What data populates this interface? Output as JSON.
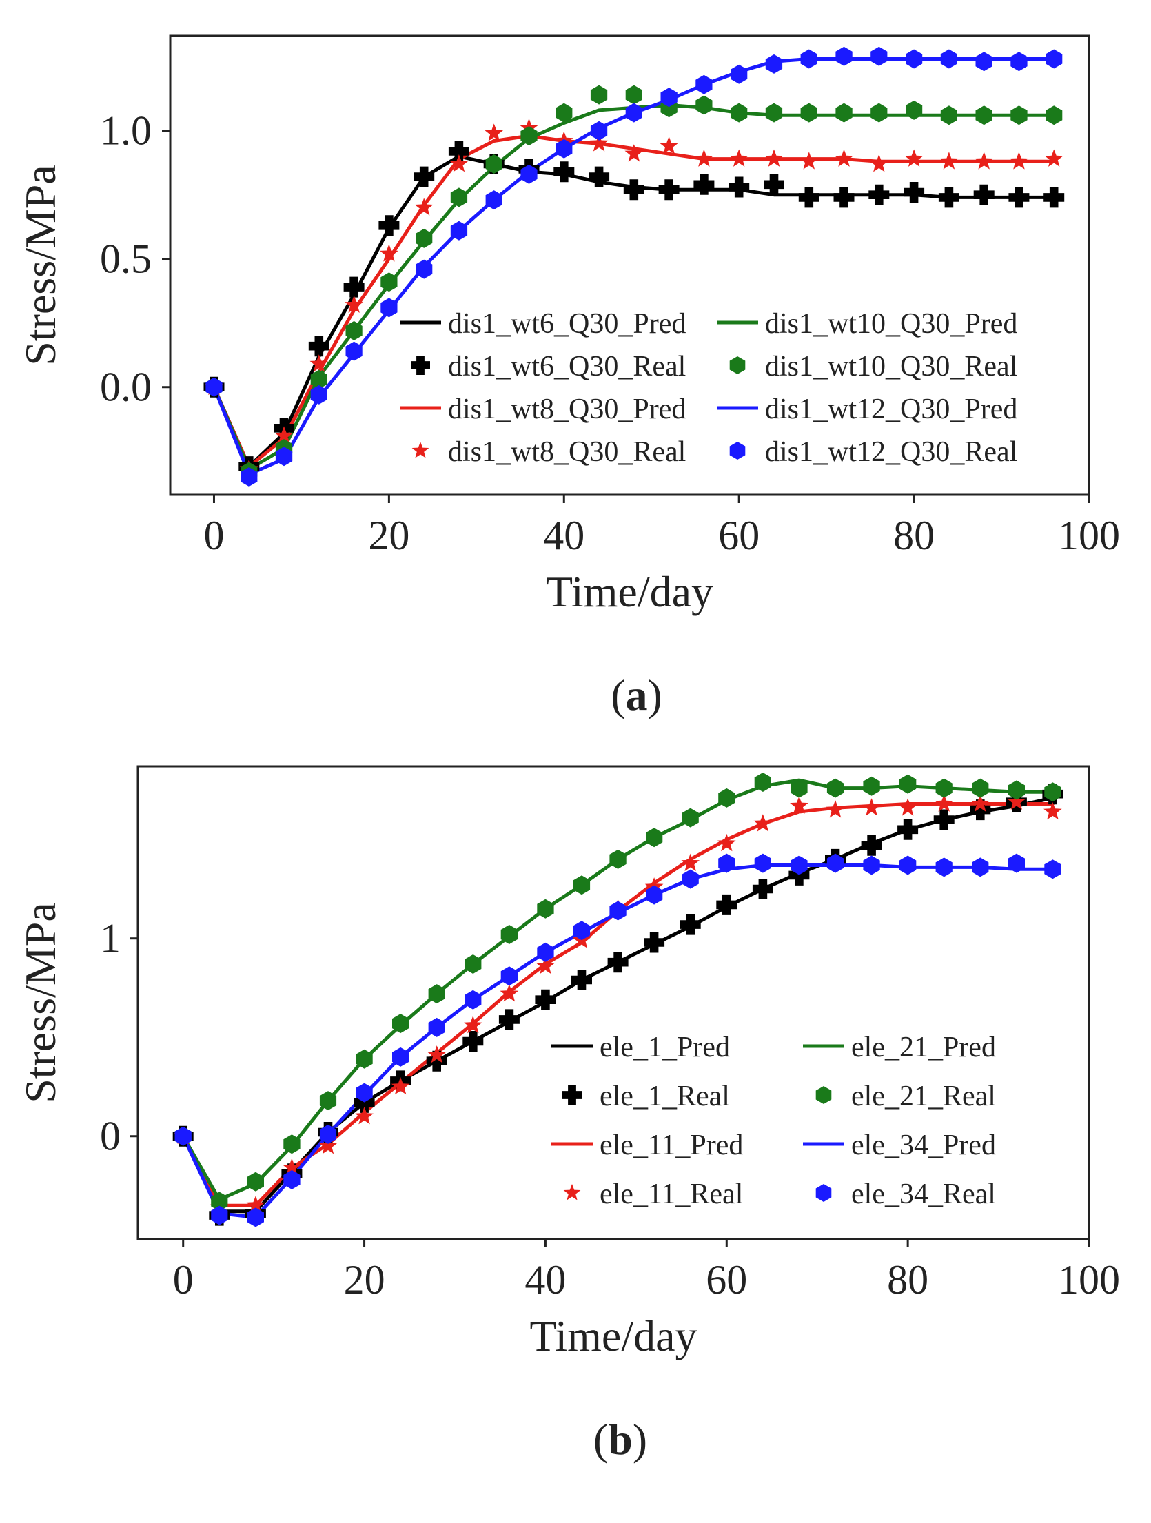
{
  "chart_data": [
    {
      "type": "line",
      "panel_label": "(a)",
      "panel_label_letter": "a",
      "xlabel": "Time/day",
      "ylabel": "Stress/MPa",
      "xlim": [
        -5,
        100
      ],
      "ylim": [
        -0.42,
        1.37
      ],
      "xticks": [
        0,
        20,
        40,
        60,
        80,
        100
      ],
      "xtick_labels": [
        "0",
        "20",
        "40",
        "60",
        "80",
        "100"
      ],
      "yticks": [
        0,
        0.5,
        1.0
      ],
      "ytick_labels": [
        "0.0",
        "0.5",
        "1.0"
      ],
      "grid": false,
      "legend_position": "lower-right",
      "x": [
        0,
        4,
        8,
        12,
        16,
        20,
        24,
        28,
        32,
        36,
        40,
        44,
        48,
        52,
        56,
        60,
        64,
        68,
        72,
        76,
        80,
        84,
        88,
        92,
        96
      ],
      "series": [
        {
          "name": "dis1_wt6_Q30_Pred",
          "kind": "line",
          "color": "#000000",
          "values": [
            0,
            -0.31,
            -0.18,
            0.12,
            0.36,
            0.62,
            0.82,
            0.9,
            0.87,
            0.84,
            0.83,
            0.8,
            0.78,
            0.77,
            0.77,
            0.77,
            0.75,
            0.75,
            0.75,
            0.75,
            0.75,
            0.74,
            0.74,
            0.74,
            0.74
          ]
        },
        {
          "name": "dis1_wt6_Q30_Real",
          "kind": "marker",
          "marker": "plus",
          "color": "#000000",
          "values": [
            0,
            -0.31,
            -0.16,
            0.16,
            0.39,
            0.63,
            0.82,
            0.92,
            0.87,
            0.85,
            0.84,
            0.82,
            0.77,
            0.77,
            0.79,
            0.78,
            0.79,
            0.74,
            0.74,
            0.75,
            0.76,
            0.74,
            0.75,
            0.74,
            0.74
          ]
        },
        {
          "name": "dis1_wt8_Q30_Pred",
          "kind": "line",
          "color": "#e8201a",
          "values": [
            0,
            -0.31,
            -0.2,
            0.06,
            0.3,
            0.5,
            0.71,
            0.89,
            0.96,
            0.98,
            0.96,
            0.95,
            0.93,
            0.91,
            0.89,
            0.89,
            0.89,
            0.89,
            0.89,
            0.88,
            0.88,
            0.88,
            0.88,
            0.88,
            0.88
          ]
        },
        {
          "name": "dis1_wt8_Q30_Real",
          "kind": "marker",
          "marker": "star",
          "color": "#e8201a",
          "values": [
            0,
            -0.32,
            -0.19,
            0.09,
            0.32,
            0.52,
            0.7,
            0.87,
            0.99,
            1.01,
            0.96,
            0.95,
            0.91,
            0.94,
            0.89,
            0.89,
            0.89,
            0.88,
            0.89,
            0.87,
            0.89,
            0.88,
            0.88,
            0.88,
            0.89
          ]
        },
        {
          "name": "dis1_wt10_Q30_Pred",
          "kind": "line",
          "color": "#1a7a1a",
          "values": [
            0,
            -0.32,
            -0.24,
            0.04,
            0.22,
            0.4,
            0.57,
            0.73,
            0.86,
            0.97,
            1.03,
            1.08,
            1.09,
            1.1,
            1.09,
            1.07,
            1.06,
            1.06,
            1.06,
            1.06,
            1.06,
            1.06,
            1.06,
            1.06,
            1.06
          ]
        },
        {
          "name": "dis1_wt10_Q30_Real",
          "kind": "marker",
          "marker": "hexagon",
          "color": "#1a7a1a",
          "values": [
            0,
            -0.33,
            -0.24,
            0.03,
            0.22,
            0.41,
            0.58,
            0.74,
            0.87,
            0.98,
            1.07,
            1.14,
            1.14,
            1.09,
            1.1,
            1.07,
            1.07,
            1.07,
            1.07,
            1.07,
            1.08,
            1.06,
            1.06,
            1.06,
            1.06
          ]
        },
        {
          "name": "dis1_wt12_Q30_Pred",
          "kind": "line",
          "color": "#1a1aff",
          "values": [
            0,
            -0.34,
            -0.28,
            -0.04,
            0.13,
            0.3,
            0.47,
            0.61,
            0.73,
            0.84,
            0.93,
            1.01,
            1.07,
            1.12,
            1.18,
            1.23,
            1.27,
            1.28,
            1.28,
            1.28,
            1.28,
            1.28,
            1.28,
            1.28,
            1.28
          ]
        },
        {
          "name": "dis1_wt12_Q30_Real",
          "kind": "marker",
          "marker": "hexagon",
          "color": "#1a1aff",
          "values": [
            0,
            -0.35,
            -0.27,
            -0.03,
            0.14,
            0.31,
            0.46,
            0.61,
            0.73,
            0.83,
            0.93,
            1.0,
            1.07,
            1.13,
            1.18,
            1.22,
            1.26,
            1.28,
            1.29,
            1.29,
            1.28,
            1.28,
            1.27,
            1.27,
            1.28
          ]
        }
      ]
    },
    {
      "type": "line",
      "panel_label": "(b)",
      "panel_label_letter": "b",
      "xlabel": "Time/day",
      "ylabel": "Stress/MPa",
      "xlim": [
        -5,
        100
      ],
      "ylim": [
        -0.52,
        1.87
      ],
      "xticks": [
        0,
        20,
        40,
        60,
        80,
        100
      ],
      "xtick_labels": [
        "0",
        "20",
        "40",
        "60",
        "80",
        "100"
      ],
      "yticks": [
        0,
        1
      ],
      "ytick_labels": [
        "0",
        "1"
      ],
      "grid": false,
      "legend_position": "lower-right",
      "x": [
        0,
        4,
        8,
        12,
        16,
        20,
        24,
        28,
        32,
        36,
        40,
        44,
        48,
        52,
        56,
        60,
        64,
        68,
        72,
        76,
        80,
        84,
        88,
        92,
        96
      ],
      "series": [
        {
          "name": "ele_1_Pred",
          "kind": "line",
          "color": "#000000",
          "values": [
            0,
            -0.38,
            -0.38,
            -0.18,
            0.02,
            0.17,
            0.28,
            0.38,
            0.48,
            0.58,
            0.68,
            0.79,
            0.88,
            0.97,
            1.06,
            1.16,
            1.25,
            1.33,
            1.4,
            1.48,
            1.55,
            1.6,
            1.64,
            1.67,
            1.71
          ]
        },
        {
          "name": "ele_1_Real",
          "kind": "marker",
          "marker": "plus",
          "color": "#000000",
          "values": [
            0,
            -0.4,
            -0.39,
            -0.19,
            0.02,
            0.17,
            0.28,
            0.38,
            0.48,
            0.59,
            0.69,
            0.79,
            0.88,
            0.98,
            1.07,
            1.17,
            1.25,
            1.32,
            1.4,
            1.47,
            1.55,
            1.6,
            1.65,
            1.69,
            1.73
          ]
        },
        {
          "name": "ele_11_Pred",
          "kind": "line",
          "color": "#e8201a",
          "values": [
            0,
            -0.35,
            -0.35,
            -0.16,
            -0.04,
            0.12,
            0.27,
            0.42,
            0.57,
            0.73,
            0.87,
            0.98,
            1.14,
            1.28,
            1.4,
            1.5,
            1.58,
            1.64,
            1.66,
            1.67,
            1.68,
            1.68,
            1.68,
            1.68,
            1.68
          ]
        },
        {
          "name": "ele_11_Real",
          "kind": "marker",
          "marker": "star",
          "color": "#e8201a",
          "values": [
            0,
            -0.36,
            -0.35,
            -0.16,
            -0.05,
            0.1,
            0.25,
            0.41,
            0.56,
            0.72,
            0.86,
            0.99,
            1.15,
            1.26,
            1.38,
            1.48,
            1.58,
            1.67,
            1.65,
            1.66,
            1.66,
            1.68,
            1.68,
            1.69,
            1.64
          ]
        },
        {
          "name": "ele_21_Pred",
          "kind": "line",
          "color": "#1a7a1a",
          "values": [
            0,
            -0.32,
            -0.24,
            -0.05,
            0.18,
            0.39,
            0.56,
            0.72,
            0.87,
            1.01,
            1.15,
            1.27,
            1.4,
            1.51,
            1.6,
            1.7,
            1.77,
            1.8,
            1.76,
            1.76,
            1.77,
            1.76,
            1.75,
            1.74,
            1.74
          ]
        },
        {
          "name": "ele_21_Real",
          "kind": "marker",
          "marker": "hexagon",
          "color": "#1a7a1a",
          "values": [
            0,
            -0.33,
            -0.23,
            -0.04,
            0.18,
            0.39,
            0.57,
            0.72,
            0.87,
            1.02,
            1.15,
            1.27,
            1.4,
            1.51,
            1.61,
            1.71,
            1.79,
            1.76,
            1.76,
            1.77,
            1.78,
            1.76,
            1.76,
            1.75,
            1.74
          ]
        },
        {
          "name": "ele_34_Pred",
          "kind": "line",
          "color": "#1a1aff",
          "values": [
            0,
            -0.39,
            -0.41,
            -0.21,
            0.01,
            0.21,
            0.4,
            0.55,
            0.69,
            0.81,
            0.93,
            1.03,
            1.13,
            1.22,
            1.3,
            1.35,
            1.37,
            1.37,
            1.37,
            1.37,
            1.36,
            1.36,
            1.36,
            1.35,
            1.35
          ]
        },
        {
          "name": "ele_34_Real",
          "kind": "marker",
          "marker": "hexagon",
          "color": "#1a1aff",
          "values": [
            0,
            -0.4,
            -0.41,
            -0.22,
            0.01,
            0.22,
            0.4,
            0.55,
            0.69,
            0.81,
            0.93,
            1.04,
            1.14,
            1.22,
            1.3,
            1.38,
            1.38,
            1.37,
            1.38,
            1.37,
            1.37,
            1.36,
            1.36,
            1.38,
            1.35
          ]
        }
      ]
    }
  ]
}
